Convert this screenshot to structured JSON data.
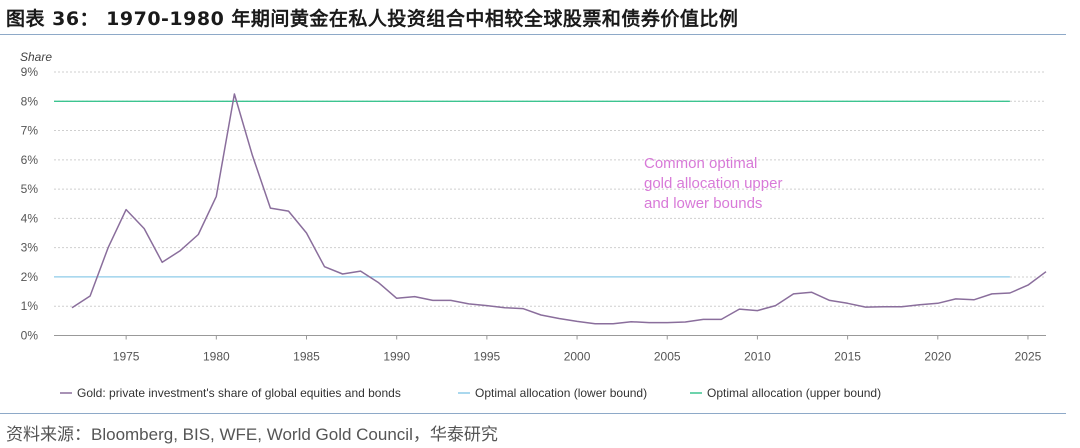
{
  "header": {
    "title": "图表 36：  1970-1980 年期间黄金在私人投资组合中相较全球股票和债券价值比例"
  },
  "footer": {
    "source": "资料来源：Bloomberg, BIS, WFE, World Gold Council，华泰研究"
  },
  "chart_data": {
    "type": "line",
    "title": "1970-1980 年期间黄金在私人投资组合中相较全球股票和债券价值比例",
    "ylabel": "Share",
    "xlabel": "",
    "xlim": [
      1971,
      2026
    ],
    "ylim": [
      0,
      9
    ],
    "y_ticks": [
      0,
      1,
      2,
      3,
      4,
      5,
      6,
      7,
      8,
      9
    ],
    "y_tick_labels": [
      "0%",
      "1%",
      "2%",
      "3%",
      "4%",
      "5%",
      "6%",
      "7%",
      "8%",
      "9%"
    ],
    "x_ticks": [
      1975,
      1980,
      1985,
      1990,
      1995,
      2000,
      2005,
      2010,
      2015,
      2020,
      2025
    ],
    "x_tick_labels": [
      "1975",
      "1980",
      "1985",
      "1990",
      "1995",
      "2000",
      "2005",
      "2010",
      "2015",
      "2020",
      "2025"
    ],
    "grid": true,
    "annotation": [
      "Common optimal",
      "gold allocation upper",
      "and lower bounds"
    ],
    "annotation_color": "#d87ad8",
    "series": [
      {
        "name": "Gold: private investment's share of global equities and bonds",
        "color": "#8a6e9c",
        "x": [
          1972,
          1973,
          1974,
          1975,
          1976,
          1977,
          1978,
          1979,
          1980,
          1981,
          1982,
          1983,
          1984,
          1985,
          1986,
          1987,
          1988,
          1989,
          1990,
          1991,
          1992,
          1993,
          1994,
          1995,
          1996,
          1997,
          1998,
          1999,
          2000,
          2001,
          2002,
          2003,
          2004,
          2005,
          2006,
          2007,
          2008,
          2009,
          2010,
          2011,
          2012,
          2013,
          2014,
          2015,
          2016,
          2017,
          2018,
          2019,
          2020,
          2021,
          2022,
          2023,
          2024,
          2025,
          2026
        ],
        "values": [
          0.95,
          1.35,
          3.0,
          4.3,
          3.65,
          2.5,
          2.9,
          3.45,
          4.75,
          8.25,
          6.15,
          4.35,
          4.25,
          3.5,
          2.35,
          2.1,
          2.2,
          1.8,
          1.27,
          1.33,
          1.2,
          1.2,
          1.08,
          1.02,
          0.95,
          0.92,
          0.7,
          0.58,
          0.48,
          0.4,
          0.4,
          0.47,
          0.44,
          0.44,
          0.46,
          0.55,
          0.55,
          0.9,
          0.85,
          1.02,
          1.42,
          1.48,
          1.2,
          1.1,
          0.97,
          0.98,
          0.98,
          1.05,
          1.1,
          1.25,
          1.22,
          1.42,
          1.45,
          1.72,
          2.18
        ]
      },
      {
        "name": "Optimal allocation (lower bound)",
        "color": "#8ecbe8",
        "x": [
          1971,
          2024
        ],
        "values": [
          2,
          2
        ]
      },
      {
        "name": "Optimal allocation (upper bound)",
        "color": "#3cc490",
        "x": [
          1971,
          2024
        ],
        "values": [
          8,
          8
        ]
      }
    ]
  }
}
